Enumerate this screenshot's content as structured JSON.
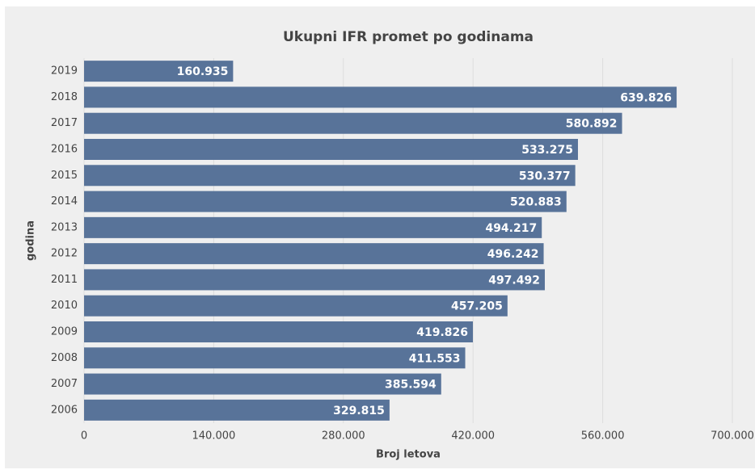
{
  "chart_data": {
    "type": "bar",
    "orientation": "horizontal",
    "title": "Ukupni IFR promet po godinama",
    "xlabel": "Broj letova",
    "ylabel": "godina",
    "categories": [
      "2019",
      "2018",
      "2017",
      "2016",
      "2015",
      "2014",
      "2013",
      "2012",
      "2011",
      "2010",
      "2009",
      "2008",
      "2007",
      "2006"
    ],
    "values": [
      160935,
      639826,
      580892,
      533275,
      530377,
      520883,
      494217,
      496242,
      497492,
      457205,
      419826,
      411553,
      385594,
      329815
    ],
    "value_labels": [
      "160.935",
      "639.826",
      "580.892",
      "533.275",
      "530.377",
      "520.883",
      "494.217",
      "496.242",
      "497.492",
      "457.205",
      "419.826",
      "411.553",
      "385.594",
      "329.815"
    ],
    "color": "#587399",
    "xlim": [
      0,
      700000
    ],
    "xticks": [
      0,
      {
        "value": 140000,
        "label": "140.000"
      },
      {
        "value": 280000,
        "label": "280.000"
      },
      {
        "value": 420000,
        "label": "420.000"
      },
      {
        "value": 560000,
        "label": "560.000"
      },
      {
        "value": 700000,
        "label": "700.000"
      }
    ],
    "grid": true
  }
}
